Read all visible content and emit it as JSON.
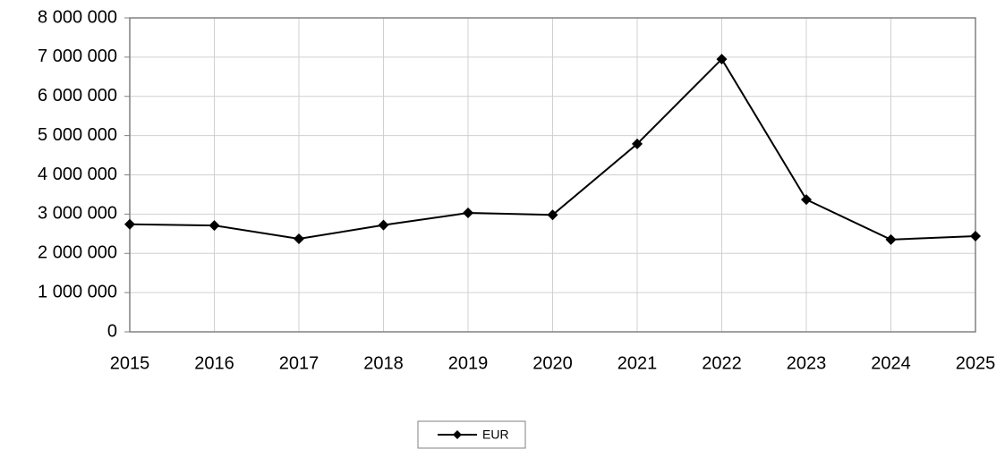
{
  "chart_data": {
    "type": "line",
    "categories": [
      "2015",
      "2016",
      "2017",
      "2018",
      "2019",
      "2020",
      "2021",
      "2022",
      "2023",
      "2024",
      "2025"
    ],
    "series": [
      {
        "name": "EUR",
        "color": "#000000",
        "values": [
          2740000,
          2710000,
          2370000,
          2720000,
          3030000,
          2980000,
          4790000,
          6950000,
          3370000,
          2350000,
          2440000
        ]
      }
    ],
    "ylim": [
      0,
      8000000
    ],
    "yticks": [
      0,
      {
        "value": 1000000,
        "label": "1 000 000"
      },
      {
        "value": 2000000,
        "label": "2 000 000"
      },
      {
        "value": 3000000,
        "label": "3 000 000"
      },
      {
        "value": 4000000,
        "label": "4 000 000"
      },
      {
        "value": 5000000,
        "label": "5 000 000"
      },
      {
        "value": 6000000,
        "label": "6 000 000"
      },
      {
        "value": 7000000,
        "label": "7 000 000"
      },
      {
        "value": 8000000,
        "label": "8 000 000"
      }
    ],
    "grid": true,
    "legend": "bottom"
  }
}
